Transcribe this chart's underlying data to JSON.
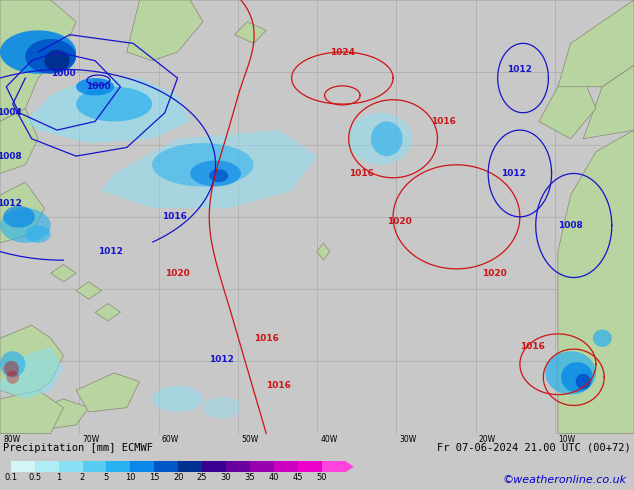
{
  "title_left": "Precipitation [mm] ECMWF",
  "title_right": "Fr 07-06-2024 21.00 UTC (00+72)",
  "credit": "©weatheronline.co.uk",
  "colorbar_labels": [
    "0.1",
    "0.5",
    "1",
    "2",
    "5",
    "10",
    "15",
    "20",
    "25",
    "30",
    "35",
    "40",
    "45",
    "50"
  ],
  "colorbar_colors": [
    "#d4f5f5",
    "#b0ecf5",
    "#88e0f5",
    "#58ccf0",
    "#28b0f0",
    "#0888e8",
    "#0055c8",
    "#003090",
    "#380090",
    "#6800a0",
    "#9800b0",
    "#cc00c0",
    "#ee00cc",
    "#ff44dd"
  ],
  "bg_color": "#c8c8c8",
  "sea_color": "#d0dce0",
  "land_color": "#b8d4a0",
  "grid_color": "#aaaaaa",
  "blue": "#1414cc",
  "red": "#cc1414",
  "font_color": "#000000",
  "credit_color": "#0000cc",
  "figsize": [
    6.34,
    4.9
  ],
  "dpi": 100
}
